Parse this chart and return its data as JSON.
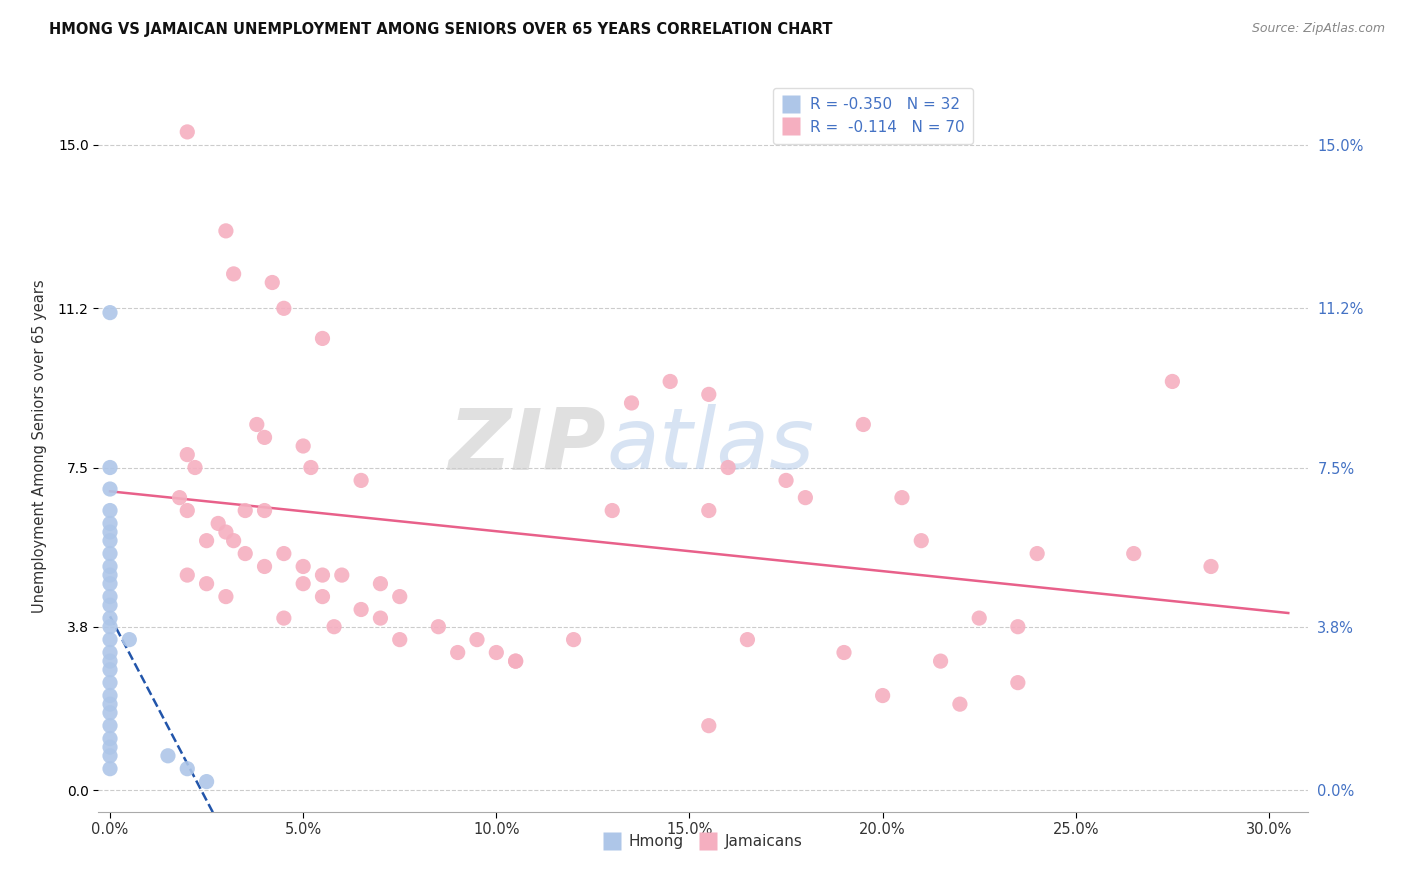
{
  "title": "HMONG VS JAMAICAN UNEMPLOYMENT AMONG SENIORS OVER 65 YEARS CORRELATION CHART",
  "source": "Source: ZipAtlas.com",
  "ylabel": "Unemployment Among Seniors over 65 years",
  "xlabel_vals": [
    0.0,
    5.0,
    10.0,
    15.0,
    20.0,
    25.0,
    30.0
  ],
  "ylabel_vals": [
    0.0,
    3.8,
    7.5,
    11.2,
    15.0
  ],
  "xlim": [
    -0.3,
    31.0
  ],
  "ylim": [
    -0.5,
    16.5
  ],
  "watermark_zip": "ZIP",
  "watermark_atlas": "atlas",
  "legend": {
    "hmong_R": "-0.350",
    "hmong_N": "32",
    "jamaican_R": "-0.114",
    "jamaican_N": "70"
  },
  "hmong_color": "#aec6e8",
  "jamaican_color": "#f5afc0",
  "hmong_line_color": "#2255aa",
  "jamaican_line_color": "#e8608a",
  "hmong_points": [
    [
      0.0,
      11.1
    ],
    [
      0.0,
      7.5
    ],
    [
      0.0,
      7.0
    ],
    [
      0.0,
      6.5
    ],
    [
      0.0,
      6.2
    ],
    [
      0.0,
      6.0
    ],
    [
      0.0,
      5.8
    ],
    [
      0.0,
      5.5
    ],
    [
      0.0,
      5.2
    ],
    [
      0.0,
      5.0
    ],
    [
      0.0,
      4.8
    ],
    [
      0.0,
      4.5
    ],
    [
      0.0,
      4.3
    ],
    [
      0.0,
      4.0
    ],
    [
      0.0,
      3.8
    ],
    [
      0.0,
      3.5
    ],
    [
      0.0,
      3.2
    ],
    [
      0.0,
      3.0
    ],
    [
      0.0,
      2.8
    ],
    [
      0.0,
      2.5
    ],
    [
      0.0,
      2.2
    ],
    [
      0.0,
      2.0
    ],
    [
      0.0,
      1.8
    ],
    [
      0.0,
      1.5
    ],
    [
      0.0,
      1.2
    ],
    [
      0.0,
      1.0
    ],
    [
      0.0,
      0.8
    ],
    [
      0.0,
      0.5
    ],
    [
      0.5,
      3.5
    ],
    [
      1.5,
      0.8
    ],
    [
      2.0,
      0.5
    ],
    [
      2.5,
      0.2
    ]
  ],
  "jamaican_points": [
    [
      2.0,
      15.3
    ],
    [
      3.0,
      13.0
    ],
    [
      3.2,
      12.0
    ],
    [
      4.2,
      11.8
    ],
    [
      4.5,
      11.2
    ],
    [
      5.5,
      10.5
    ],
    [
      3.8,
      8.5
    ],
    [
      4.0,
      8.2
    ],
    [
      5.0,
      8.0
    ],
    [
      2.0,
      7.8
    ],
    [
      2.2,
      7.5
    ],
    [
      5.2,
      7.5
    ],
    [
      6.5,
      7.2
    ],
    [
      1.8,
      6.8
    ],
    [
      2.0,
      6.5
    ],
    [
      3.5,
      6.5
    ],
    [
      4.0,
      6.5
    ],
    [
      2.8,
      6.2
    ],
    [
      3.0,
      6.0
    ],
    [
      3.2,
      5.8
    ],
    [
      3.5,
      5.5
    ],
    [
      4.5,
      5.5
    ],
    [
      5.0,
      5.2
    ],
    [
      5.5,
      5.0
    ],
    [
      6.0,
      5.0
    ],
    [
      7.0,
      4.8
    ],
    [
      7.5,
      4.5
    ],
    [
      2.5,
      5.8
    ],
    [
      4.0,
      5.2
    ],
    [
      5.0,
      4.8
    ],
    [
      5.5,
      4.5
    ],
    [
      6.5,
      4.2
    ],
    [
      7.0,
      4.0
    ],
    [
      8.5,
      3.8
    ],
    [
      9.5,
      3.5
    ],
    [
      10.0,
      3.2
    ],
    [
      10.5,
      3.0
    ],
    [
      2.0,
      5.0
    ],
    [
      2.5,
      4.8
    ],
    [
      3.0,
      4.5
    ],
    [
      4.5,
      4.0
    ],
    [
      5.8,
      3.8
    ],
    [
      7.5,
      3.5
    ],
    [
      9.0,
      3.2
    ],
    [
      10.5,
      3.0
    ],
    [
      12.0,
      3.5
    ],
    [
      14.5,
      9.5
    ],
    [
      15.5,
      9.2
    ],
    [
      13.5,
      9.0
    ],
    [
      16.0,
      7.5
    ],
    [
      17.5,
      7.2
    ],
    [
      19.5,
      8.5
    ],
    [
      20.5,
      6.8
    ],
    [
      15.5,
      6.5
    ],
    [
      18.0,
      6.8
    ],
    [
      13.0,
      6.5
    ],
    [
      21.0,
      5.8
    ],
    [
      24.0,
      5.5
    ],
    [
      23.5,
      3.8
    ],
    [
      26.5,
      5.5
    ],
    [
      27.5,
      9.5
    ],
    [
      28.5,
      5.2
    ],
    [
      22.5,
      4.0
    ],
    [
      16.5,
      3.5
    ],
    [
      19.0,
      3.2
    ],
    [
      21.5,
      3.0
    ],
    [
      23.5,
      2.5
    ],
    [
      15.5,
      1.5
    ],
    [
      20.0,
      2.2
    ],
    [
      22.0,
      2.0
    ]
  ],
  "background_color": "#ffffff",
  "grid_color": "#cccccc"
}
